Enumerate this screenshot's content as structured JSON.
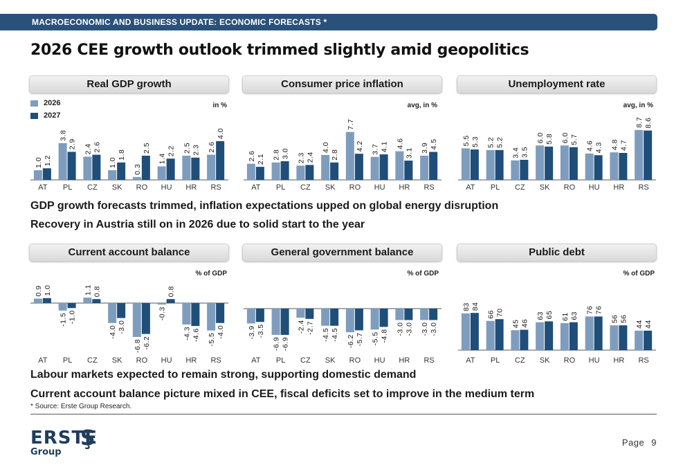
{
  "header_bar": "MACROECONOMIC AND BUSINESS UPDATE: ECONOMIC FORECASTS *",
  "title": "2026 CEE growth outlook trimmed slightly amid geopolitics",
  "legend": [
    {
      "label": "2026",
      "color": "#7e9dbe"
    },
    {
      "label": "2027",
      "color": "#1f4e79"
    }
  ],
  "notes": {
    "line1": "GDP growth forecasts trimmed, inflation expectations upped on global energy disruption",
    "line2": "Recovery in Austria still on in 2026 due to solid start to the year",
    "line3": "Labour markets expected to remain strong, supporting domestic demand",
    "line4": "Current account balance picture mixed in CEE, fiscal deficits set to improve in the medium term"
  },
  "source": "* Source: Erste Group Research.",
  "logo": {
    "word": "ERSTE",
    "sub": "Group",
    "mark": "Ş"
  },
  "page": {
    "label": "Page",
    "number": "9"
  },
  "chart_data": [
    {
      "type": "bar",
      "title": "Real GDP growth",
      "unit": "in %",
      "categories": [
        "AT",
        "PL",
        "CZ",
        "SK",
        "RO",
        "HU",
        "HR",
        "RS"
      ],
      "series": [
        {
          "name": "2026",
          "values": [
            1.0,
            3.8,
            2.4,
            1.0,
            0.3,
            1.4,
            2.5,
            2.6
          ]
        },
        {
          "name": "2027",
          "values": [
            1.2,
            2.9,
            2.6,
            1.8,
            2.5,
            2.2,
            2.3,
            4.0
          ]
        }
      ],
      "labels": [
        [
          "1.0",
          "3.8",
          "2.4",
          "1.0",
          "0.3",
          "1.4",
          "2.5",
          "2.6"
        ],
        [
          "1.2",
          "2.9",
          "2.6",
          "1.8",
          "2.5",
          "2.2",
          "2.3",
          "4.0"
        ]
      ]
    },
    {
      "type": "bar",
      "title": "Consumer price inflation",
      "unit": "avg, in %",
      "categories": [
        "AT",
        "PL",
        "CZ",
        "SK",
        "RO",
        "HU",
        "HR",
        "RS"
      ],
      "series": [
        {
          "name": "2026",
          "values": [
            2.6,
            2.8,
            2.3,
            4.0,
            7.7,
            3.7,
            4.6,
            3.9
          ]
        },
        {
          "name": "2027",
          "values": [
            2.1,
            3.0,
            2.4,
            2.8,
            4.2,
            4.1,
            3.1,
            4.5
          ]
        }
      ],
      "labels": [
        [
          "2.6",
          "2.8",
          "2.3",
          "4.0",
          "7.7",
          "3.7",
          "4.6",
          "3.9"
        ],
        [
          "2.1",
          "3.0",
          "2.4",
          "2.8",
          "4.2",
          "4.1",
          "3.1",
          "4.5"
        ]
      ]
    },
    {
      "type": "bar",
      "title": "Unemployment rate",
      "unit": "avg, in %",
      "categories": [
        "AT",
        "PL",
        "CZ",
        "SK",
        "RO",
        "HU",
        "HR",
        "RS"
      ],
      "series": [
        {
          "name": "2026",
          "values": [
            5.5,
            5.2,
            3.4,
            6.0,
            6.0,
            4.6,
            4.8,
            8.7
          ]
        },
        {
          "name": "2027",
          "values": [
            5.3,
            5.2,
            3.5,
            5.8,
            5.7,
            4.3,
            4.7,
            8.6
          ]
        }
      ],
      "labels": [
        [
          "5.5",
          "5.2",
          "3.4",
          "6.0",
          "6.0",
          "4.6",
          "4.8",
          "8.7"
        ],
        [
          "5.3",
          "5.2",
          "3.5",
          "5.8",
          "5.7",
          "4.3",
          "4.7",
          "8.6"
        ]
      ]
    },
    {
      "type": "bar",
      "title": "Current account balance",
      "unit": "% of GDP",
      "categories": [
        "AT",
        "PL",
        "CZ",
        "SK",
        "RO",
        "HU",
        "HR",
        "RS"
      ],
      "series": [
        {
          "name": "2026",
          "values": [
            0.9,
            -1.5,
            1.1,
            -4.0,
            -6.8,
            -0.3,
            -4.3,
            -5.5
          ]
        },
        {
          "name": "2027",
          "values": [
            1.0,
            -1.0,
            0.8,
            -3.0,
            -6.2,
            0.8,
            -4.6,
            -4.0
          ]
        }
      ],
      "labels": [
        [
          "0.9",
          "-1.5",
          "1.1",
          "-4.0",
          "-6.8",
          "-0.3",
          "-4.3",
          "-5.5"
        ],
        [
          "1.0",
          "-1.0",
          "0.8",
          "-3.0",
          "-6.2",
          "0.8",
          "-4.6",
          "-4.0"
        ]
      ]
    },
    {
      "type": "bar",
      "title": "General government balance",
      "unit": "% of GDP",
      "categories": [
        "AT",
        "PL",
        "CZ",
        "SK",
        "RO",
        "HU",
        "HR",
        "RS"
      ],
      "series": [
        {
          "name": "2026",
          "values": [
            -3.9,
            -6.9,
            -2.4,
            -4.5,
            -6.2,
            -5.5,
            -3.0,
            -3.0
          ]
        },
        {
          "name": "2027",
          "values": [
            -3.5,
            -6.9,
            -2.7,
            -4.5,
            -5.7,
            -4.8,
            -3.0,
            -3.0
          ]
        }
      ],
      "labels": [
        [
          "-3.9",
          "-6.9",
          "-2.4",
          "-4.5",
          "-6.2",
          "-5.5",
          "-3.0",
          "-3.0"
        ],
        [
          "-3.5",
          "-6.9",
          "-2.7",
          "-4.5",
          "-5.7",
          "-4.8",
          "-3.0",
          "-3.0"
        ]
      ]
    },
    {
      "type": "bar",
      "title": "Public debt",
      "unit": "% of GDP",
      "categories": [
        "AT",
        "PL",
        "CZ",
        "SK",
        "RO",
        "HU",
        "HR",
        "RS"
      ],
      "series": [
        {
          "name": "2026",
          "values": [
            83,
            66,
            45,
            63,
            61,
            76,
            56,
            44
          ]
        },
        {
          "name": "2027",
          "values": [
            84,
            70,
            46,
            65,
            63,
            76,
            56,
            44
          ]
        }
      ],
      "labels": [
        [
          "83",
          "66",
          "45",
          "63",
          "61",
          "76",
          "56",
          "44"
        ],
        [
          "84",
          "70",
          "46",
          "65",
          "63",
          "76",
          "56",
          "44"
        ]
      ]
    }
  ]
}
